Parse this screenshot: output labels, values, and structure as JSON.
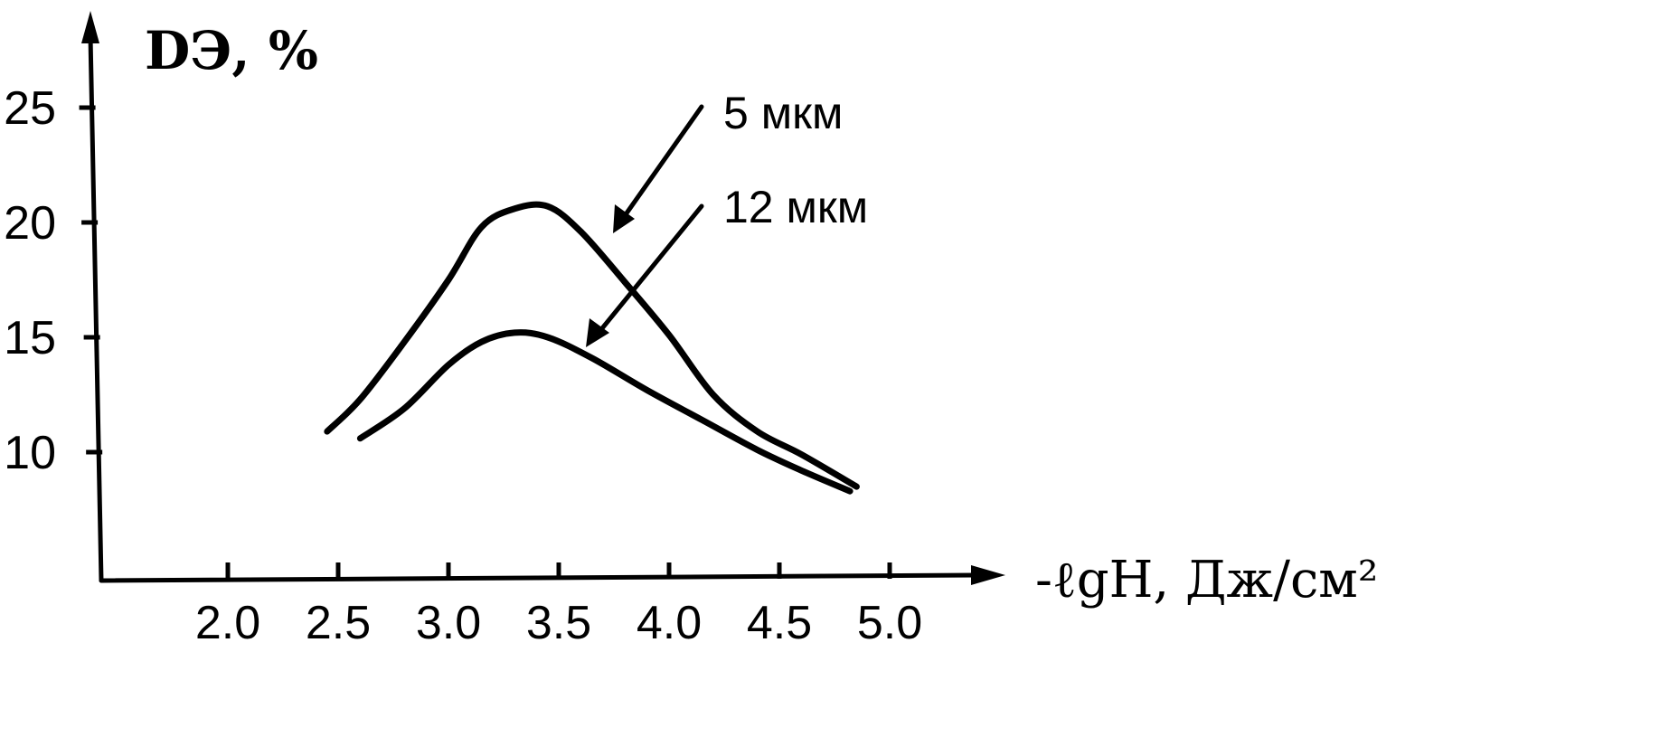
{
  "chart_data": {
    "type": "line",
    "xlabel": "-ℓgH, Дж/см²",
    "ylabel": "DЭ, %",
    "xlim": [
      1.5,
      5.3
    ],
    "ylim": [
      6,
      26
    ],
    "x_ticks": [
      "2.0",
      "2.5",
      "3.0",
      "3.5",
      "4.0",
      "4.5",
      "5.0"
    ],
    "y_ticks": [
      "10",
      "15",
      "20",
      "25"
    ],
    "grid": false,
    "series": [
      {
        "name": "5 мкм",
        "x": [
          2.45,
          2.6,
          2.8,
          3.0,
          3.15,
          3.3,
          3.45,
          3.6,
          3.8,
          4.0,
          4.2,
          4.4,
          4.6,
          4.85
        ],
        "y": [
          10.9,
          12.3,
          14.8,
          17.5,
          19.8,
          20.6,
          20.7,
          19.6,
          17.4,
          15.1,
          12.5,
          10.9,
          9.9,
          8.5
        ]
      },
      {
        "name": "12 мкм",
        "x": [
          2.6,
          2.8,
          3.0,
          3.15,
          3.3,
          3.45,
          3.65,
          3.9,
          4.15,
          4.4,
          4.6,
          4.82
        ],
        "y": [
          10.6,
          11.9,
          13.8,
          14.8,
          15.2,
          15.0,
          14.1,
          12.7,
          11.4,
          10.1,
          9.2,
          8.3
        ]
      }
    ]
  }
}
